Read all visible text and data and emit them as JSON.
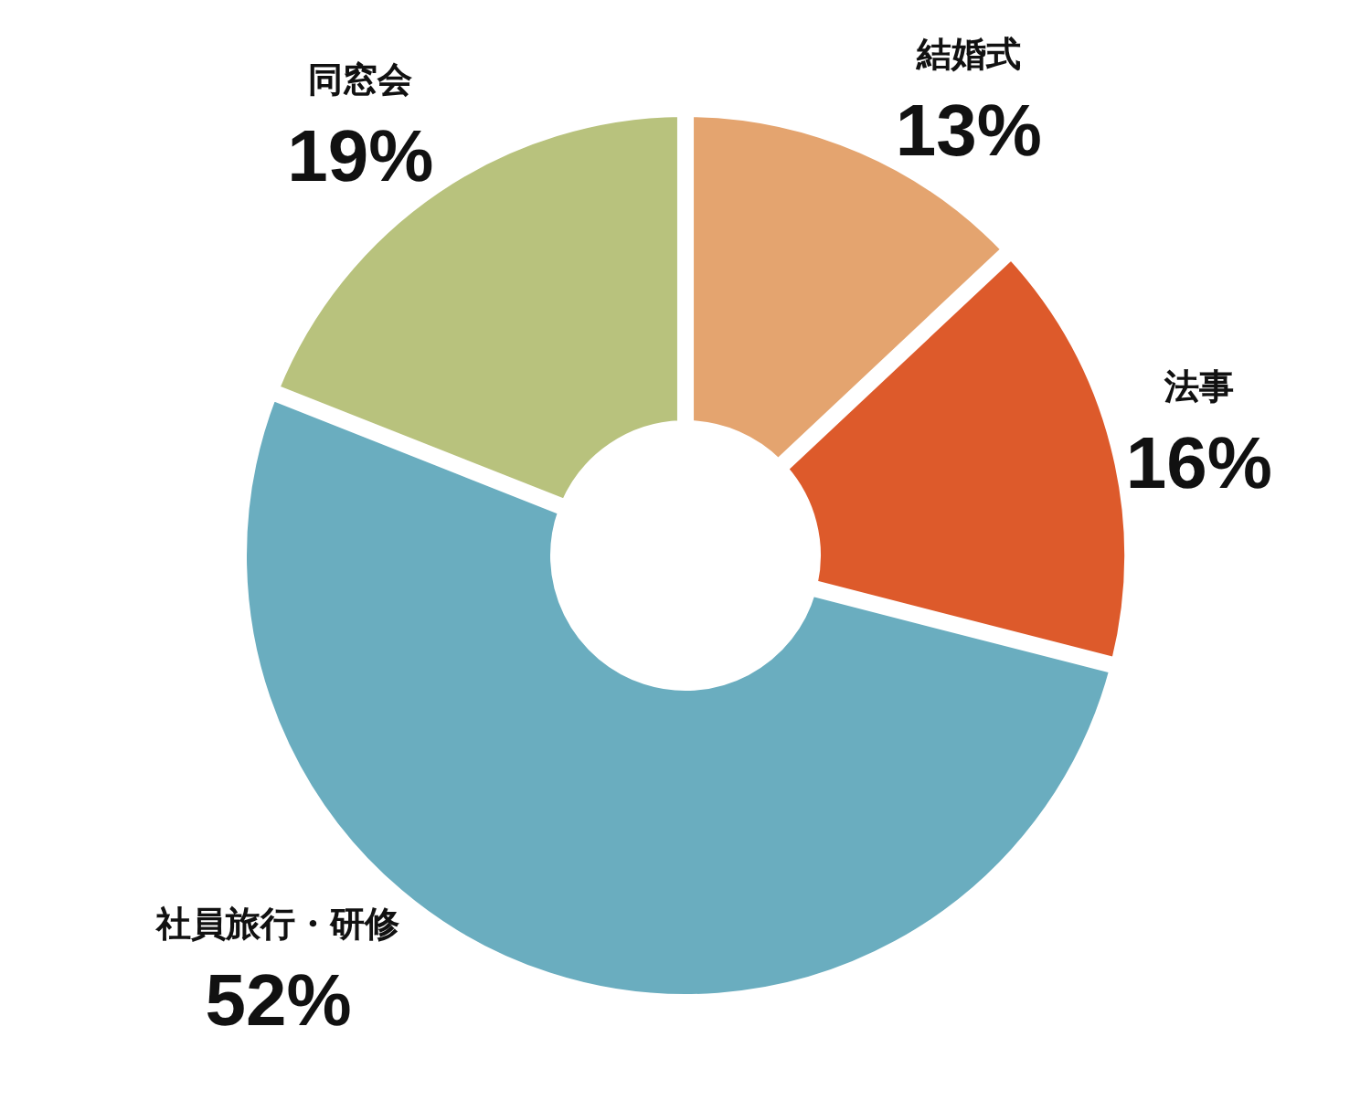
{
  "chart_data": {
    "type": "donut",
    "categories": [
      "結婚式",
      "法事",
      "社員旅行・研修",
      "同窓会"
    ],
    "values": [
      13,
      16,
      52,
      19
    ],
    "colors": [
      "#e4a46f",
      "#dd5a2b",
      "#6aadbf",
      "#b8c27d"
    ],
    "value_labels": [
      "13%",
      "16%",
      "52%",
      "19%"
    ]
  }
}
